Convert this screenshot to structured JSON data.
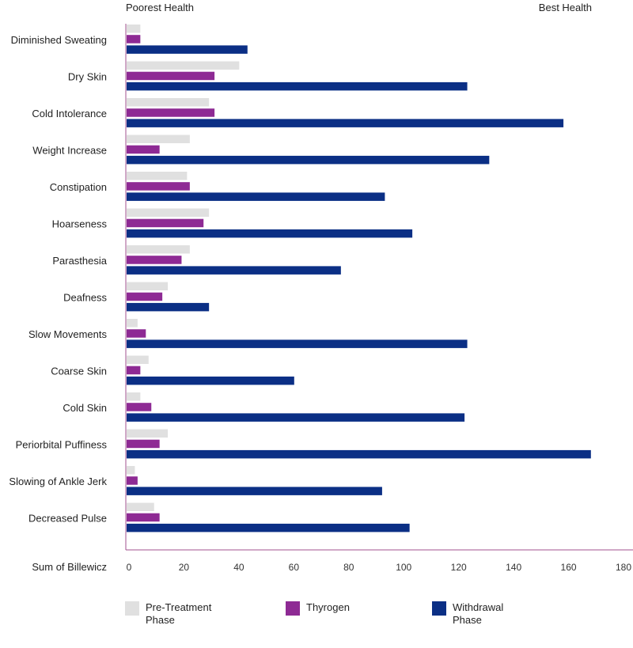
{
  "chart_data": {
    "type": "bar",
    "orientation": "horizontal",
    "header_left": "Poorest Health",
    "header_right": "Best Health",
    "xlabel": "Sum of Billewicz",
    "xlim": [
      0,
      180
    ],
    "xticks": [
      0,
      20,
      40,
      60,
      80,
      100,
      120,
      140,
      160,
      180
    ],
    "categories": [
      "Diminished Sweating",
      "Dry Skin",
      "Cold Intolerance",
      "Weight Increase",
      "Constipation",
      "Hoarseness",
      "Parasthesia",
      "Deafness",
      "Slow Movements",
      "Coarse Skin",
      "Cold Skin",
      "Periorbital Puffiness",
      "Slowing of Ankle Jerk",
      "Decreased Pulse"
    ],
    "series": [
      {
        "name": "Pre-Treatment Phase",
        "color": "#e0e0e0",
        "values": [
          5,
          41,
          30,
          23,
          22,
          30,
          23,
          15,
          4,
          8,
          5,
          15,
          3,
          10
        ]
      },
      {
        "name": "Thyrogen",
        "color": "#8e2a94",
        "values": [
          5,
          32,
          32,
          12,
          23,
          28,
          20,
          13,
          7,
          5,
          9,
          12,
          4,
          12
        ]
      },
      {
        "name": "Withdrawal Phase",
        "color": "#0b2f85",
        "values": [
          44,
          124,
          159,
          132,
          94,
          104,
          78,
          30,
          124,
          61,
          123,
          169,
          93,
          103
        ]
      }
    ],
    "legend_position": "bottom",
    "grid": false
  },
  "legend": [
    {
      "line1": "Pre-Treatment",
      "line2": "Phase",
      "color": "#e0e0e0"
    },
    {
      "line1": "Thyrogen",
      "line2": "",
      "color": "#8e2a94"
    },
    {
      "line1": "Withdrawal",
      "line2": "Phase",
      "color": "#0b2f85"
    }
  ]
}
